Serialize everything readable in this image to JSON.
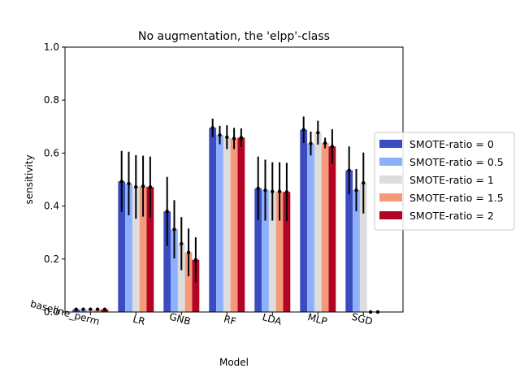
{
  "chart_data": {
    "type": "bar",
    "title": "No augmentation, the 'elpp'-class",
    "xlabel": "Model",
    "ylabel": "sensitivity",
    "ylim": [
      0,
      1.0
    ],
    "yticks": [
      "0.0",
      "0.2",
      "0.4",
      "0.6",
      "0.8",
      "1.0"
    ],
    "categories": [
      "baseline_perm",
      "LR",
      "GNB",
      "RF",
      "LDA",
      "MLP",
      "SGD"
    ],
    "grid": false,
    "legend_position": "right",
    "series": [
      {
        "name": "SMOTE-ratio = 0",
        "color": "#3b4cc0",
        "values": [
          0.01,
          0.493,
          0.38,
          0.695,
          0.467,
          0.688,
          0.535
        ],
        "err": [
          0.002,
          0.115,
          0.13,
          0.035,
          0.12,
          0.05,
          0.09
        ]
      },
      {
        "name": "SMOTE-ratio = 0.5",
        "color": "#8db0fe",
        "values": [
          0.01,
          0.485,
          0.312,
          0.668,
          0.46,
          0.636,
          0.46
        ],
        "err": [
          0.002,
          0.12,
          0.11,
          0.035,
          0.115,
          0.045,
          0.08
        ]
      },
      {
        "name": "SMOTE-ratio = 1",
        "color": "#dddddd",
        "values": [
          0.01,
          0.472,
          0.258,
          0.66,
          0.455,
          0.677,
          0.487
        ],
        "err": [
          0.002,
          0.12,
          0.1,
          0.045,
          0.11,
          0.045,
          0.115
        ]
      },
      {
        "name": "SMOTE-ratio = 1.5",
        "color": "#f49a7b",
        "values": [
          0.01,
          0.475,
          0.225,
          0.655,
          0.455,
          0.638,
          0.0
        ],
        "err": [
          0.002,
          0.115,
          0.09,
          0.04,
          0.11,
          0.02,
          0.0
        ]
      },
      {
        "name": "SMOTE-ratio = 2",
        "color": "#b40426",
        "values": [
          0.01,
          0.472,
          0.197,
          0.658,
          0.453,
          0.625,
          0.0
        ],
        "err": [
          0.002,
          0.115,
          0.085,
          0.035,
          0.11,
          0.065,
          0.0
        ]
      }
    ]
  }
}
